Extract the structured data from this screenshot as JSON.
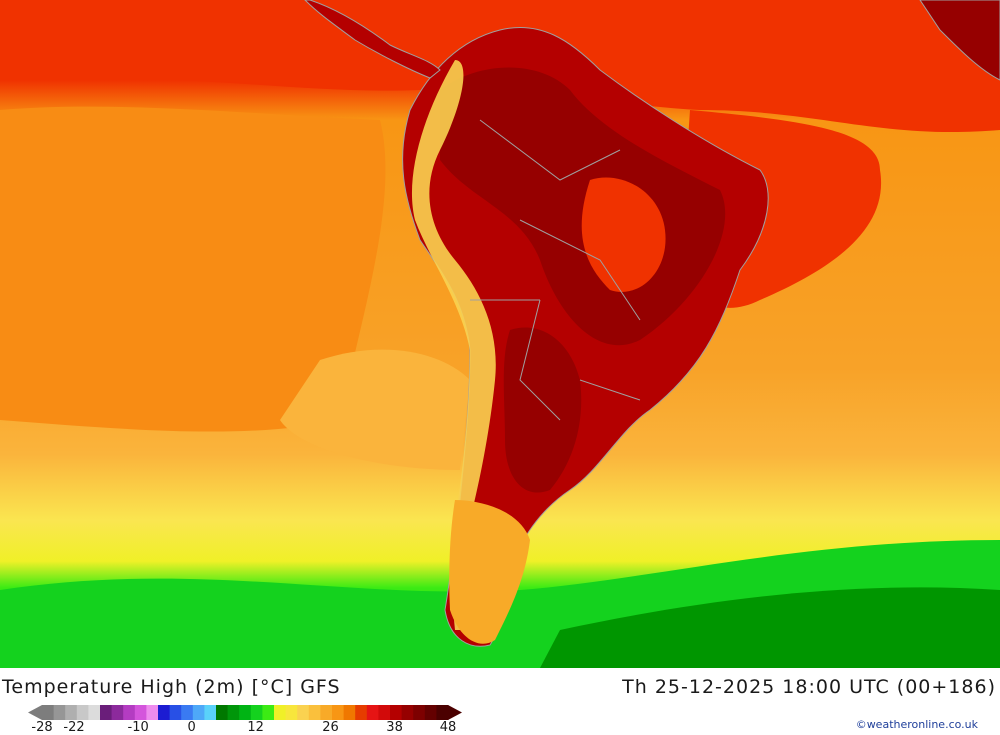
{
  "title_left": "Temperature High (2m) [°C] GFS",
  "title_right": "Th 25-12-2025 18:00 UTC (00+186)",
  "credit": "©weatheronline.co.uk",
  "legend": {
    "min_value": -28,
    "max_value": 48,
    "ticks": [
      {
        "value": -28,
        "label": "-28"
      },
      {
        "value": -22,
        "label": "-22"
      },
      {
        "value": -10,
        "label": "-10"
      },
      {
        "value": 0,
        "label": "0"
      },
      {
        "value": 12,
        "label": "12"
      },
      {
        "value": 26,
        "label": "26"
      },
      {
        "value": 38,
        "label": "38"
      },
      {
        "value": 48,
        "label": "48"
      }
    ],
    "colors": [
      "#7d7d7d",
      "#969696",
      "#afafaf",
      "#c8c8c8",
      "#dcdcdc",
      "#6a1e7a",
      "#8c2a9c",
      "#b43cc2",
      "#d455dc",
      "#ee8cee",
      "#1c1cd2",
      "#2850e6",
      "#3a7af2",
      "#4ea8f8",
      "#5ad2fa",
      "#007800",
      "#00960a",
      "#00b414",
      "#14d21e",
      "#3ceb14",
      "#f0f028",
      "#f8e63c",
      "#fad250",
      "#fac03c",
      "#f8aa28",
      "#f89614",
      "#f07800",
      "#e63c00",
      "#e61414",
      "#d20a0a",
      "#b40000",
      "#960000",
      "#7d0000",
      "#640000",
      "#4b0000"
    ]
  },
  "map_colors": {
    "ocean_hot": "#f03200",
    "ocean_warm": "#f89614",
    "ocean_mild": "#fab43c",
    "ocean_cool": "#fae650",
    "ocean_cold": "#f0f028",
    "south_green": "#14d21e",
    "south_dark": "#009600",
    "land_hot": "#b40000",
    "land_darker": "#960000",
    "andes": "#fad250",
    "border": "#a0a0a0"
  }
}
